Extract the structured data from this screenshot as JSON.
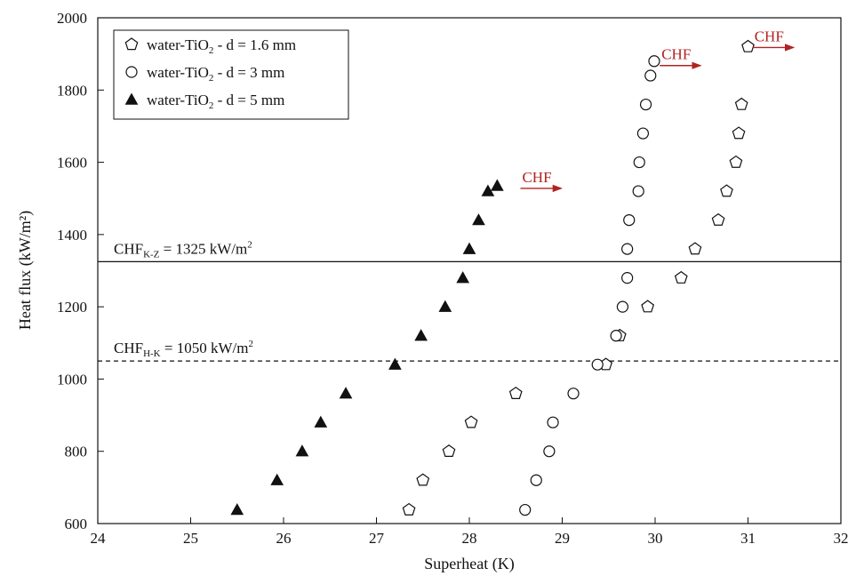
{
  "chart_data": {
    "type": "scatter",
    "xlabel": "Superheat (K)",
    "ylabel": "Heat flux (kW/m²)",
    "xlim": [
      24,
      32
    ],
    "ylim": [
      600,
      2000
    ],
    "xticks": [
      "24",
      "25",
      "26",
      "27",
      "28",
      "29",
      "30",
      "31",
      "32"
    ],
    "yticks": [
      "600",
      "800",
      "1000",
      "1200",
      "1400",
      "1600",
      "1800",
      "2000"
    ],
    "grid": false,
    "legend_placement": "top-left",
    "series": [
      {
        "name": "water-TiO₂ - d = 1.6 mm",
        "marker": "pentagon",
        "x": [
          27.35,
          27.5,
          27.78,
          28.02,
          28.5,
          29.47,
          29.62,
          29.92,
          30.28,
          30.43,
          30.68,
          30.77,
          30.87,
          30.9,
          30.93,
          31.0
        ],
        "y": [
          638,
          720,
          800,
          880,
          960,
          1040,
          1120,
          1200,
          1280,
          1360,
          1440,
          1520,
          1600,
          1680,
          1760,
          1920
        ]
      },
      {
        "name": "water-TiO₂ - d = 3 mm",
        "marker": "circle",
        "x": [
          28.6,
          28.72,
          28.86,
          28.9,
          29.12,
          29.38,
          29.58,
          29.65,
          29.7,
          29.7,
          29.72,
          29.82,
          29.83,
          29.87,
          29.9,
          29.95,
          29.99
        ],
        "y": [
          638,
          720,
          800,
          880,
          960,
          1040,
          1120,
          1200,
          1280,
          1360,
          1440,
          1520,
          1600,
          1680,
          1760,
          1840,
          1880
        ]
      },
      {
        "name": "water-TiO₂ - d = 5 mm",
        "marker": "triangle-filled",
        "x": [
          25.5,
          25.93,
          26.2,
          26.4,
          26.67,
          27.2,
          27.48,
          27.74,
          27.93,
          28.0,
          28.1,
          28.2,
          28.3
        ],
        "y": [
          638,
          720,
          800,
          880,
          960,
          1040,
          1120,
          1200,
          1280,
          1360,
          1440,
          1520,
          1535
        ]
      }
    ],
    "reference_lines": [
      {
        "label_main": "CHF",
        "label_sub": "K-Z",
        "label_value": " = 1325 kW/m",
        "label_sup": "2",
        "y": 1325,
        "style": "solid"
      },
      {
        "label_main": "CHF",
        "label_sub": "H-K",
        "label_value": " = 1050 kW/m",
        "label_sup": "2",
        "y": 1050,
        "style": "dashed"
      }
    ],
    "annotations": [
      {
        "text": "CHF",
        "x": 28.55,
        "y": 1545
      },
      {
        "text": "CHF",
        "x": 30.05,
        "y": 1885
      },
      {
        "text": "CHF",
        "x": 31.05,
        "y": 1935
      }
    ],
    "colors": {
      "axis": "#111111",
      "annotation": "#b22222"
    }
  }
}
